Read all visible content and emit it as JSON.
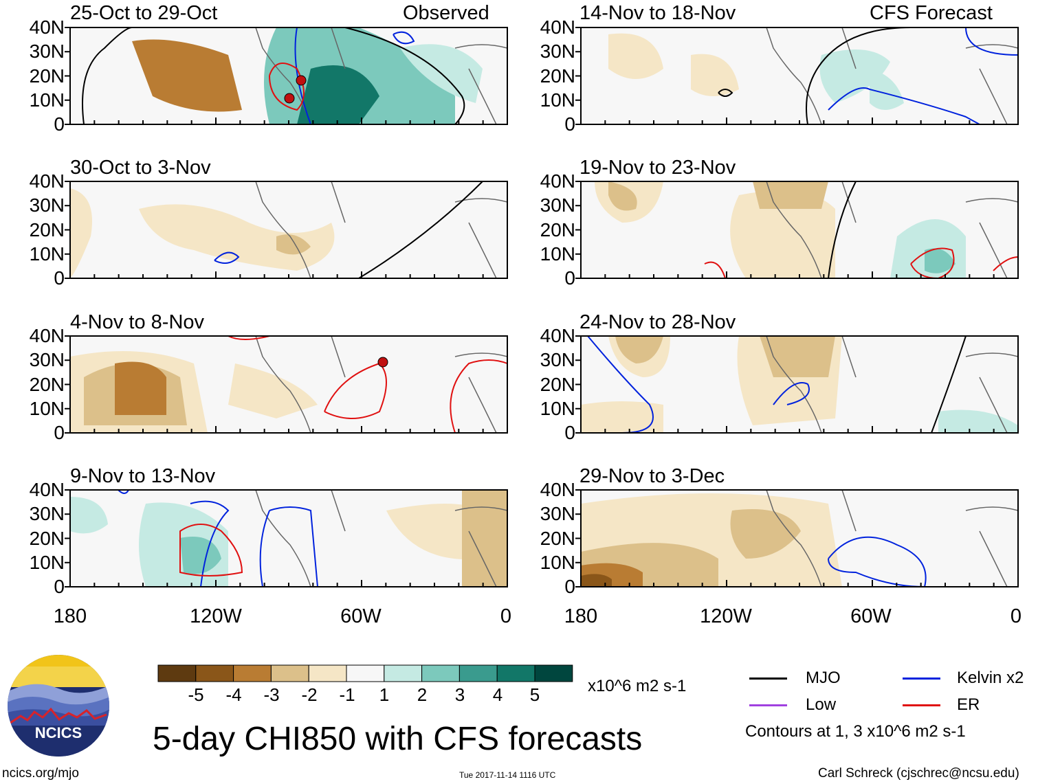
{
  "figure": {
    "title": "5-day CHI850 with CFS forecasts",
    "observed_label": "Observed",
    "forecast_label": "CFS Forecast",
    "lat_ticks": [
      "40N",
      "30N",
      "20N",
      "10N",
      "0"
    ],
    "lon_ticks": [
      "180",
      "120W",
      "60W",
      "0"
    ]
  },
  "panels": [
    {
      "title": "25-Oct to 29-Oct"
    },
    {
      "title": "30-Oct to 3-Nov"
    },
    {
      "title": "4-Nov to 8-Nov"
    },
    {
      "title": "9-Nov to 13-Nov"
    },
    {
      "title": "14-Nov to 18-Nov"
    },
    {
      "title": "19-Nov to 23-Nov"
    },
    {
      "title": "24-Nov to 28-Nov"
    },
    {
      "title": "29-Nov to 3-Dec"
    }
  ],
  "colorbar": {
    "labels": [
      "-5",
      "-4",
      "-3",
      "-2",
      "-1",
      "1",
      "2",
      "3",
      "4",
      "5"
    ],
    "colors": [
      "#5e3a10",
      "#8a5619",
      "#b97c33",
      "#dcc08a",
      "#f5e6c6",
      "#f7f7f7",
      "#c5eae3",
      "#7cc9bc",
      "#3a9b8e",
      "#127768",
      "#00463e"
    ],
    "units": "x10^6 m2 s-1"
  },
  "legend": {
    "mjo": {
      "label": "MJO",
      "color": "#000000"
    },
    "kelvin": {
      "label": "Kelvin x2",
      "color": "#0022dd"
    },
    "low": {
      "label": "Low",
      "color": "#a040e0"
    },
    "er": {
      "label": "ER",
      "color": "#e01010"
    },
    "note": "Contours at 1, 3 x10^6 m2 s-1"
  },
  "logo": {
    "text": "NCICS"
  },
  "footer": {
    "url": "ncics.org/mjo",
    "timestamp": "Tue 2017-11-14 1116 UTC",
    "author": "Carl Schreck (cjschrec@ncsu.edu)"
  }
}
